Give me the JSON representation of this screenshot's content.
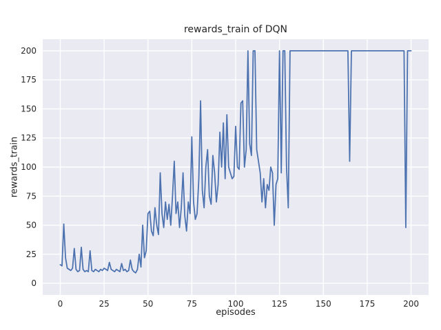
{
  "chart_data": {
    "type": "line",
    "title": "rewards_train of DQN",
    "xlabel": "episodes",
    "ylabel": "rewards_train",
    "xlim": [
      -10,
      210
    ],
    "ylim": [
      -10,
      210
    ],
    "x_ticks": [
      0,
      25,
      50,
      75,
      100,
      125,
      150,
      175,
      200
    ],
    "y_ticks": [
      0,
      25,
      50,
      75,
      100,
      125,
      150,
      175,
      200
    ],
    "grid": true,
    "legend": false,
    "style": {
      "fig_bg": "#ffffff",
      "axes_bg": "#eaeaf2",
      "grid_color": "#ffffff",
      "text_color": "#262626",
      "line_color": "#4c72b0"
    },
    "series": [
      {
        "name": "rewards_train",
        "color": "#4c72b0",
        "x_start": 0,
        "x_step": 1,
        "values": [
          16,
          15,
          51,
          22,
          13,
          12,
          11,
          13,
          30,
          12,
          10,
          11,
          31,
          12,
          10,
          11,
          10,
          28,
          11,
          10,
          12,
          11,
          10,
          12,
          11,
          13,
          12,
          11,
          18,
          12,
          11,
          10,
          12,
          11,
          10,
          17,
          11,
          12,
          10,
          11,
          20,
          12,
          10,
          9,
          12,
          25,
          14,
          50,
          22,
          28,
          60,
          62,
          45,
          41,
          65,
          50,
          42,
          95,
          60,
          48,
          70,
          55,
          68,
          50,
          75,
          105,
          60,
          70,
          48,
          65,
          95,
          58,
          45,
          70,
          60,
          126,
          70,
          55,
          60,
          90,
          157,
          80,
          65,
          100,
          115,
          75,
          68,
          110,
          95,
          70,
          85,
          130,
          100,
          138,
          90,
          145,
          100,
          95,
          90,
          92,
          135,
          100,
          98,
          155,
          157,
          100,
          115,
          200,
          120,
          110,
          200,
          200,
          115,
          105,
          95,
          70,
          90,
          65,
          85,
          80,
          100,
          95,
          50,
          85,
          90,
          200,
          95,
          200,
          200,
          100,
          65,
          200,
          200,
          200,
          200,
          200,
          200,
          200,
          200,
          200,
          200,
          200,
          200,
          200,
          200,
          200,
          200,
          200,
          200,
          200,
          200,
          200,
          200,
          200,
          200,
          200,
          200,
          200,
          200,
          200,
          200,
          200,
          200,
          200,
          200,
          105,
          200,
          200,
          200,
          200,
          200,
          200,
          200,
          200,
          200,
          200,
          200,
          200,
          200,
          200,
          200,
          200,
          200,
          200,
          200,
          200,
          200,
          200,
          200,
          200,
          200,
          200,
          200,
          200,
          200,
          200,
          200,
          48,
          200,
          200,
          200
        ]
      }
    ]
  }
}
